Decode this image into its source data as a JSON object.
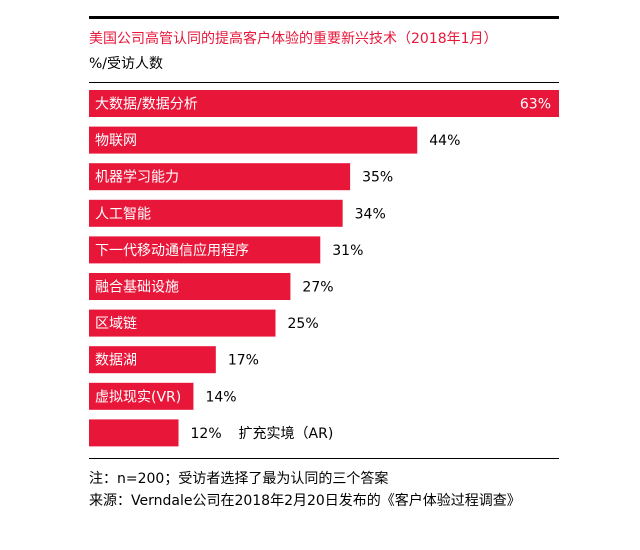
{
  "title": "美国公司高管认同的提高客户体验的重要新兴技术（2018年1月）",
  "unit_label": "%/受访人数",
  "note": "注：n=200；受访者选择了最为认同的三个答案",
  "source": "来源：Verndale公司在2018年2月20日发布的《客户体验过程调查》",
  "colors": {
    "bar": "#e8173a",
    "text": "#000000",
    "title": "#e8173a"
  },
  "chart_data": {
    "type": "bar",
    "orientation": "horizontal",
    "title": "美国公司高管认同的提高客户体验的重要新兴技术（2018年1月）",
    "ylabel": "%/受访人数",
    "xlim": [
      0,
      63
    ],
    "grid": false,
    "categories": [
      "大数据/数据分析",
      "物联网",
      "机器学习能力",
      "人工智能",
      "下一代移动通信应用程序",
      "融合基础设施",
      "区域链",
      "数据湖",
      "虚拟现实(VR)",
      "扩充实境（AR)"
    ],
    "values": [
      63,
      44,
      35,
      34,
      31,
      27,
      25,
      17,
      14,
      12
    ],
    "value_labels": [
      "63%",
      "44%",
      "35%",
      "34%",
      "31%",
      "27%",
      "25%",
      "17%",
      "14%",
      "12%"
    ]
  }
}
